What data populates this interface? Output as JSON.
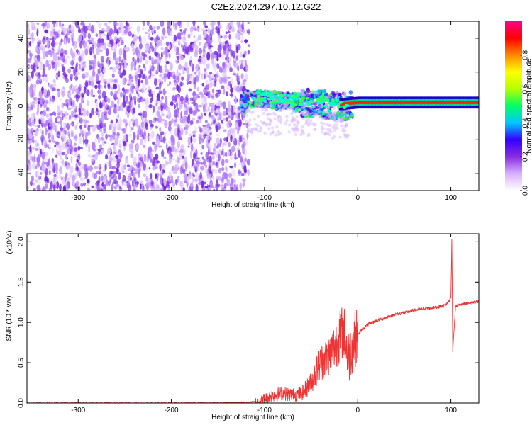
{
  "title": "C2E2.2024.297.10.12.G22",
  "chart_data": [
    {
      "type": "heatmap",
      "xlabel": "Height of straight line (km)",
      "ylabel": "Frequency (Hz)",
      "xlim": [
        -355,
        130
      ],
      "ylim": [
        -50,
        50
      ],
      "x_ticks": [
        -300,
        -200,
        -100,
        0,
        100
      ],
      "x_tick_labels": [
        "-300",
        "-200",
        "-100",
        "0",
        "100"
      ],
      "y_ticks": [
        -40,
        -20,
        0,
        20,
        40
      ],
      "y_tick_labels": [
        "-40",
        "-20",
        "0",
        "20",
        "40"
      ],
      "colorbar": {
        "label": "Normalized spectral amplitude",
        "range": [
          0,
          1
        ],
        "ticks": [
          0.0,
          0.2,
          0.4,
          0.6,
          0.8
        ],
        "tick_labels": [
          "0.0",
          "0.2",
          "0.4",
          "0.6",
          "0.8"
        ],
        "colormap": [
          "#ffffff",
          "#d8b0ff",
          "#8a2be2",
          "#3300ff",
          "#00c8ff",
          "#00ff66",
          "#b4ff00",
          "#ffff00",
          "#ff8800",
          "#ff0000",
          "#ff0088"
        ]
      },
      "dominant_frequency_track": {
        "x": [
          -120,
          -100,
          -80,
          -60,
          -40,
          -20,
          0,
          20,
          40,
          60,
          80,
          100,
          130
        ],
        "freq": [
          5,
          5,
          4,
          3,
          3,
          1,
          2,
          2,
          2,
          2,
          2,
          2,
          2
        ]
      },
      "noise_region_x": [
        -355,
        -125
      ],
      "grid": false
    },
    {
      "type": "line",
      "xlabel": "Height of straight line (km)",
      "ylabel": "SNR (10 * v/v)",
      "y_multiplier": "(x10^4)",
      "xlim": [
        -355,
        130
      ],
      "ylim": [
        0,
        2.1
      ],
      "x_ticks": [
        -300,
        -200,
        -100,
        0,
        100
      ],
      "x_tick_labels": [
        "-300",
        "-200",
        "-100",
        "0",
        "100"
      ],
      "y_ticks": [
        0.0,
        0.5,
        1.0,
        1.5,
        2.0
      ],
      "y_tick_labels": [
        "0.0",
        "0.5",
        "1.0",
        "1.5",
        "2.0"
      ],
      "color": "#ee3333",
      "series": [
        {
          "x": [
            -355,
            -300,
            -250,
            -200,
            -150,
            -120,
            -105,
            -100,
            -90,
            -80,
            -70,
            -60,
            -50,
            -45,
            -40,
            -35,
            -30,
            -25,
            -20,
            -15,
            -10,
            -5,
            0,
            10,
            20,
            30,
            40,
            50,
            60,
            70,
            80,
            90,
            95,
            100,
            101,
            102,
            105,
            110,
            120,
            130
          ],
          "y": [
            0.0,
            0.0,
            0.0,
            0.0,
            0.0,
            0.01,
            0.02,
            0.06,
            0.1,
            0.12,
            0.1,
            0.12,
            0.25,
            0.38,
            0.5,
            0.55,
            0.6,
            0.7,
            0.8,
            0.9,
            0.55,
            0.75,
            0.85,
            0.97,
            1.02,
            1.06,
            1.1,
            1.12,
            1.15,
            1.17,
            1.18,
            1.2,
            1.22,
            1.3,
            2.05,
            0.65,
            1.2,
            1.22,
            1.24,
            1.26
          ]
        }
      ],
      "grid": false
    }
  ]
}
